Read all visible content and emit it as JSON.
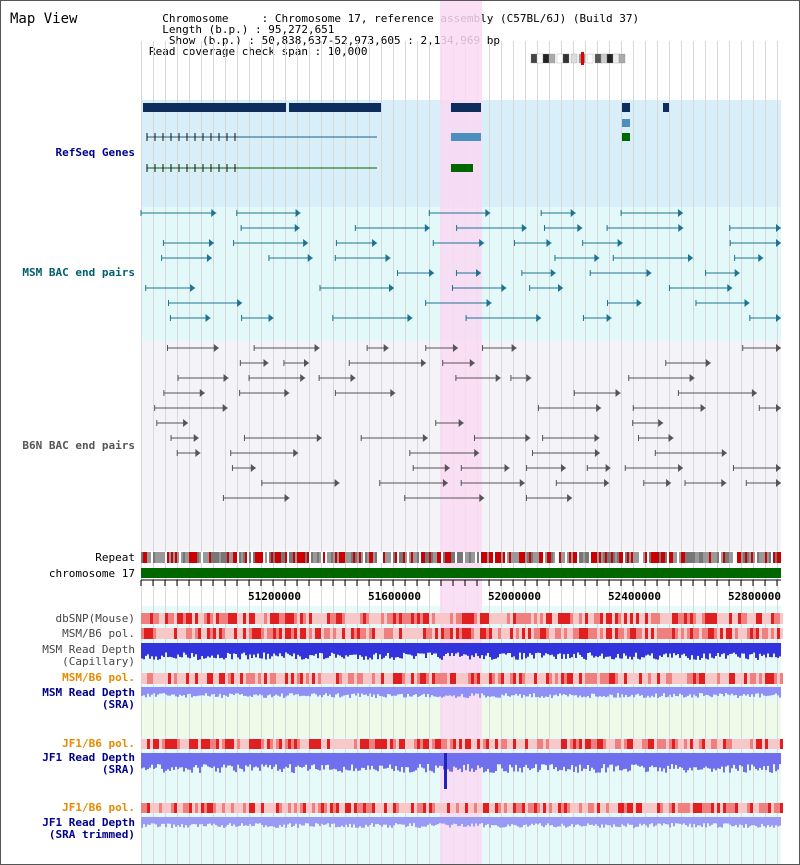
{
  "header": {
    "title": "Map View",
    "info_lines": [
      "  Chromosome     : Chromosome 17, reference assembly (C57BL/6J) (Build 37)",
      "  Length (b.p.) : 95,272,651",
      "   Show (b.p.) : 50,838,637-52,973,605 : 2,134,969 bp",
      "Read coverage check span : 10,000"
    ]
  },
  "tracks": {
    "refseq": "RefSeq Genes",
    "msm_bac": "MSM BAC end pairs",
    "b6n_bac": "B6N BAC end pairs",
    "repeat": "Repeat",
    "chromosome": "chromosome 17",
    "dbsnp": "dbSNP(Mouse)",
    "msm_pol": "MSM/B6 pol.",
    "msm_depth_cap_1": "MSM Read Depth",
    "msm_depth_cap_2": "(Capillary)",
    "msm_pol_sra": "MSM/B6 pol.",
    "msm_depth_sra_1": "MSM Read Depth",
    "msm_depth_sra_2": "(SRA)",
    "jf1_pol": "JF1/B6 pol.",
    "jf1_depth_1": "JF1 Read Depth",
    "jf1_depth_2": "(SRA)",
    "jf1_pol_trim": "JF1/B6 pol.",
    "jf1_trim_1": "JF1 Read Depth",
    "jf1_trim_2": "(SRA trimmed)"
  },
  "axis": {
    "ticks": [
      "51200000",
      "51600000",
      "52000000",
      "52400000",
      "52800000"
    ]
  },
  "colors": {
    "highlight": "#f9d9f3",
    "refseq_bg": "#d8eef8",
    "msm_bg": "#e3f8f8",
    "b6n_bg": "#f4f4f8",
    "chromosome": "#006600",
    "label_blue": "#00008b",
    "label_teal": "#005f6f",
    "label_orange": "#e68a00",
    "depth_blue": "#3333dd",
    "depth_light": "#8f8ff5"
  }
}
